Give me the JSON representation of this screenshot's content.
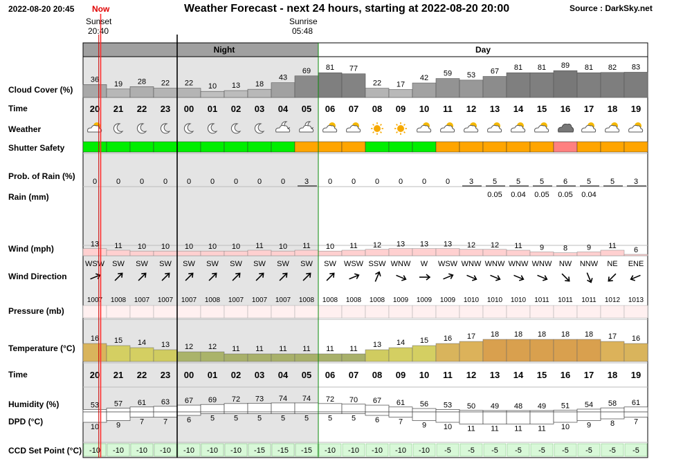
{
  "header": {
    "timestamp": "2022-08-20 20:45",
    "now_label": "Now",
    "title": "Weather Forecast - next 24 hours, starting at 2022-08-20 20:00",
    "source": "Source : DarkSky.net",
    "sunset_label": "Sunset",
    "sunset_time": "20:40",
    "sunrise_label": "Sunrise",
    "sunrise_time": "05:48"
  },
  "chart_data": {
    "type": "table",
    "period_labels": {
      "night": "Night",
      "day": "Day"
    },
    "hours": [
      "20",
      "21",
      "22",
      "23",
      "00",
      "01",
      "02",
      "03",
      "04",
      "05",
      "06",
      "07",
      "08",
      "09",
      "10",
      "11",
      "12",
      "13",
      "14",
      "15",
      "16",
      "17",
      "18",
      "19"
    ],
    "row_labels": {
      "cloud": "Cloud Cover (%)",
      "time": "Time",
      "weather": "Weather",
      "shutter": "Shutter Safety",
      "prob": "Prob. of Rain (%)",
      "rain": "Rain (mm)",
      "wind": "Wind (mph)",
      "dir": "Wind Direction",
      "pressure": "Pressure (mb)",
      "temp": "Temperature (°C)",
      "time2": "Time",
      "humidity": "Humidity (%)",
      "dpd": "DPD (°C)",
      "ccd": "CCD Set Point (°C)"
    },
    "cloud_cover": [
      36,
      19,
      28,
      22,
      22,
      10,
      13,
      18,
      43,
      69,
      81,
      77,
      22,
      17,
      42,
      59,
      53,
      67,
      81,
      81,
      89,
      81,
      82,
      83
    ],
    "weather_icons": [
      "partly-cloudy-day",
      "clear-night",
      "clear-night",
      "clear-night",
      "clear-night",
      "clear-night",
      "clear-night",
      "clear-night",
      "partly-cloudy-night",
      "partly-cloudy-night",
      "partly-cloudy-day",
      "partly-cloudy-day",
      "clear-day",
      "clear-day",
      "partly-cloudy-day",
      "partly-cloudy-day",
      "partly-cloudy-day",
      "partly-cloudy-day",
      "partly-cloudy-day",
      "partly-cloudy-day",
      "cloudy",
      "partly-cloudy-day",
      "partly-cloudy-day",
      "partly-cloudy-day"
    ],
    "shutter_safety": [
      "safe",
      "safe",
      "safe",
      "safe",
      "safe",
      "safe",
      "safe",
      "safe",
      "safe",
      "caution",
      "caution",
      "caution",
      "safe",
      "safe",
      "safe",
      "caution",
      "caution",
      "caution",
      "caution",
      "caution",
      "unsafe",
      "caution",
      "caution",
      "caution"
    ],
    "shutter_colors": {
      "safe": "#00ee00",
      "caution": "#ffa500",
      "unsafe": "#ff8080"
    },
    "prob_of_rain": [
      0,
      0,
      0,
      0,
      0,
      0,
      0,
      0,
      0,
      3,
      0,
      0,
      0,
      0,
      0,
      0,
      3,
      5,
      5,
      5,
      6,
      5,
      5,
      3
    ],
    "rain_mm": [
      "",
      "",
      "",
      "",
      "",
      "",
      "",
      "",
      "",
      "",
      "",
      "",
      "",
      "",
      "",
      "",
      "",
      "0.05",
      "0.04",
      "0.05",
      "0.05",
      "0.04",
      "",
      ""
    ],
    "wind_mph": [
      13,
      11,
      10,
      10,
      10,
      10,
      10,
      11,
      10,
      11,
      10,
      11,
      12,
      13,
      13,
      13,
      12,
      12,
      11,
      9,
      8,
      9,
      11,
      6
    ],
    "wind_direction": [
      "WSW",
      "SW",
      "SW",
      "SW",
      "SW",
      "SW",
      "SW",
      "SW",
      "SW",
      "SW",
      "SW",
      "WSW",
      "SSW",
      "WNW",
      "W",
      "WSW",
      "WNW",
      "WNW",
      "WNW",
      "WNW",
      "NW",
      "NNW",
      "NE",
      "ENE"
    ],
    "pressure_mb": [
      1007,
      1008,
      1007,
      1007,
      1007,
      1008,
      1007,
      1007,
      1007,
      1008,
      1008,
      1008,
      1008,
      1009,
      1009,
      1009,
      1010,
      1010,
      1010,
      1011,
      1011,
      1011,
      1012,
      1013
    ],
    "temperature_c": [
      16,
      15,
      14,
      13,
      12,
      12,
      11,
      11,
      11,
      11,
      11,
      11,
      13,
      14,
      15,
      16,
      17,
      18,
      18,
      18,
      18,
      18,
      17,
      16
    ],
    "humidity_pct": [
      53,
      57,
      61,
      63,
      67,
      69,
      72,
      73,
      74,
      74,
      72,
      70,
      67,
      61,
      56,
      53,
      50,
      49,
      48,
      49,
      51,
      54,
      58,
      61
    ],
    "dpd_c": [
      10,
      9,
      7,
      7,
      6,
      5,
      5,
      5,
      5,
      5,
      5,
      5,
      6,
      7,
      9,
      10,
      11,
      11,
      11,
      11,
      10,
      9,
      8,
      7
    ],
    "ccd_set_point_c": [
      -10,
      -10,
      -10,
      -10,
      -10,
      -10,
      -10,
      -15,
      -15,
      -15,
      -10,
      -10,
      -10,
      -10,
      -10,
      -5,
      -5,
      -5,
      -5,
      -5,
      -5,
      -5,
      -5,
      -5
    ],
    "night_hours": 10,
    "sunset_hour_fraction": 0.667,
    "now_hour_fraction": 0.75
  }
}
